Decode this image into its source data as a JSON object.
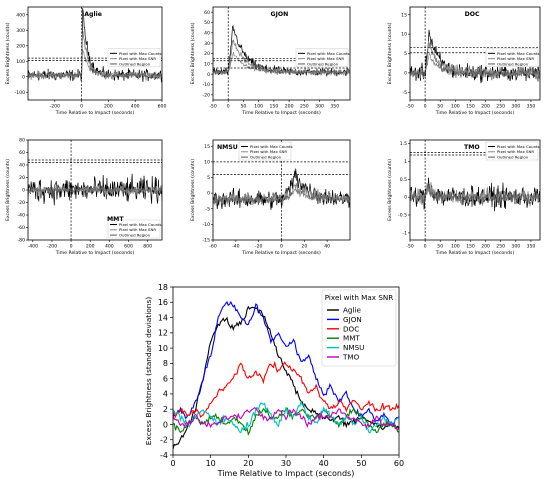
{
  "chart_data": [
    {
      "type": "line",
      "title": "Aglie",
      "xlabel": "Time Relative to Impact (seconds)",
      "ylabel": "Excess Brightness (counts)",
      "xlim": [
        -400,
        600
      ],
      "ylim": [
        -150,
        450
      ],
      "xticks": [
        -200,
        0,
        200,
        400,
        600
      ],
      "yticks": [
        -100,
        0,
        100,
        200,
        300,
        400
      ],
      "hlines": [
        120,
        105
      ],
      "vline": 0,
      "legend": [
        "Pixel with Max Counts",
        "Pixel with Max SNR",
        "Outlined Region"
      ],
      "legend_position": "right",
      "profile": {
        "peak": 420,
        "peak_t": 8,
        "decay_tau": 40,
        "base": 10,
        "noise": 55,
        "second": 0.7
      }
    },
    {
      "type": "line",
      "title": "GJON",
      "xlabel": "Time Relative to Impact (seconds)",
      "ylabel": "Excess Brightness (counts)",
      "xlim": [
        -50,
        400
      ],
      "ylim": [
        -25,
        65
      ],
      "xticks": [
        -50,
        0,
        50,
        100,
        150,
        200,
        250,
        300,
        350
      ],
      "yticks": [
        -20,
        -10,
        0,
        10,
        20,
        30,
        40,
        50,
        60
      ],
      "hlines": [
        15,
        13,
        6
      ],
      "vline": 0,
      "legend": [
        "Pixel with Max Counts",
        "Pixel with Max SNR",
        "Outlined Region"
      ],
      "legend_position": "right",
      "profile": {
        "peak": 45,
        "peak_t": 15,
        "decay_tau": 40,
        "base": 2,
        "noise": 6,
        "second": 0.7
      }
    },
    {
      "type": "line",
      "title": "DOC",
      "xlabel": "Time Relative to Impact (seconds)",
      "ylabel": "Excess Brightness (counts)",
      "xlim": [
        -50,
        380
      ],
      "ylim": [
        -7,
        17
      ],
      "xticks": [
        -50,
        0,
        50,
        100,
        150,
        200,
        250,
        300,
        350
      ],
      "yticks": [
        -5,
        0,
        5,
        10,
        15
      ],
      "hlines": [
        6.5,
        5.2
      ],
      "vline": 0,
      "legend": [
        "Pixel with Max Counts",
        "Pixel with Max SNR",
        "Outlined Region"
      ],
      "legend_position": "right",
      "profile": {
        "peak": 11,
        "peak_t": 12,
        "decay_tau": 30,
        "base": 0,
        "noise": 3.2,
        "second": 0.7
      }
    },
    {
      "type": "line",
      "title": "MMT",
      "xlabel": "Time Relative to Impact (seconds)",
      "ylabel": "Excess Brightness (counts)",
      "xlim": [
        -450,
        950
      ],
      "ylim": [
        -80,
        80
      ],
      "xticks": [
        -400,
        -200,
        0,
        200,
        400,
        600,
        800
      ],
      "yticks": [
        -80,
        -60,
        -40,
        -20,
        0,
        20,
        40,
        60,
        80
      ],
      "hlines": [
        48,
        44
      ],
      "vline": 0,
      "legend": [
        "Pixel with Max Counts",
        "Pixel with Max SNR",
        "Outlined Region"
      ],
      "legend_position": "bottom-right",
      "profile": {
        "peak": 0,
        "peak_t": 10,
        "decay_tau": 20,
        "base": 0,
        "noise": 30,
        "second": 0.3
      }
    },
    {
      "type": "line",
      "title": "NMSU",
      "xlabel": "Time Relative to Impact (seconds)",
      "ylabel": "Excess Brightness (counts)",
      "xlim": [
        -60,
        60
      ],
      "ylim": [
        -15,
        17
      ],
      "xticks": [
        -60,
        -40,
        -20,
        0,
        20,
        40
      ],
      "yticks": [
        -15,
        -10,
        -5,
        0,
        5,
        10,
        15
      ],
      "hlines": [
        10,
        6
      ],
      "vline": 0,
      "legend": [
        "Pixel with Max Counts",
        "Pixel with Max SNR",
        "Outlined Region"
      ],
      "legend_position": "top-left",
      "profile": {
        "peak": 8,
        "peak_t": 12,
        "decay_tau": 12,
        "base": -2,
        "noise": 4.5,
        "second": 0.6
      }
    },
    {
      "type": "line",
      "title": "TMO",
      "xlabel": "Time Relative to Impact (seconds)",
      "ylabel": "Excess Brightness (counts)",
      "xlim": [
        -50,
        380
      ],
      "ylim": [
        -1.2,
        1.6
      ],
      "xticks": [
        -50,
        0,
        50,
        100,
        150,
        200,
        250,
        300,
        350
      ],
      "yticks": [
        -1.0,
        -0.5,
        0.0,
        0.5,
        1.0,
        1.5
      ],
      "hlines": [
        1.25,
        1.18
      ],
      "vline": 0,
      "legend": [
        "Pixel with Max Counts",
        "Pixel with Max SNR",
        "Outlined Region"
      ],
      "legend_position": "top-right",
      "profile": {
        "peak": 0.5,
        "peak_t": 10,
        "decay_tau": 15,
        "base": 0,
        "noise": 0.45,
        "second": 0.7
      }
    },
    {
      "type": "line",
      "title": "",
      "xlabel": "Time Relative to Impact (seconds)",
      "ylabel": "Excess Brightness (standard deviations)",
      "xlim": [
        0,
        60
      ],
      "ylim": [
        -4,
        18
      ],
      "xticks": [
        0,
        10,
        20,
        30,
        40,
        50,
        60
      ],
      "yticks": [
        -4,
        -2,
        0,
        2,
        4,
        6,
        8,
        10,
        12,
        14,
        16,
        18
      ],
      "legend_title": "Pixel with Max SNR",
      "legend_position": "top-right",
      "x": [
        0,
        2,
        4,
        6,
        8,
        10,
        12,
        14,
        16,
        18,
        20,
        22,
        24,
        26,
        28,
        30,
        32,
        34,
        36,
        38,
        40,
        42,
        44,
        46,
        48,
        50,
        52,
        54,
        56,
        58,
        60
      ],
      "series": [
        {
          "name": "Aglie",
          "color": "#000000",
          "values": [
            -3,
            -2,
            0,
            2,
            6,
            11,
            13,
            14,
            12.5,
            13.5,
            15,
            15.5,
            14.5,
            12,
            9,
            7,
            5,
            3,
            2,
            1.5,
            1,
            0.5,
            1,
            0,
            0.5,
            1,
            0.5,
            0,
            -0.5,
            0,
            -0.5
          ]
        },
        {
          "name": "GJON",
          "color": "#0000ff",
          "values": [
            1,
            2,
            1,
            3,
            6,
            9,
            14,
            16,
            15.5,
            14,
            13,
            15.5,
            14,
            11,
            12,
            10,
            11,
            8,
            9,
            6,
            4,
            5,
            3,
            4,
            2,
            1,
            2,
            0.5,
            1.5,
            0,
            1
          ]
        },
        {
          "name": "DOC",
          "color": "#ff0000",
          "values": [
            1,
            2,
            1,
            2,
            1,
            3,
            4,
            5,
            6,
            8,
            6,
            7,
            6,
            8,
            7,
            8,
            7,
            6,
            4,
            5,
            3,
            2,
            3,
            2,
            3,
            2,
            3,
            2,
            2.5,
            2,
            2.5
          ]
        },
        {
          "name": "MMT",
          "color": "#008000",
          "values": [
            0,
            -1,
            0,
            1,
            0,
            1,
            1,
            0,
            1,
            0,
            -1,
            1,
            2,
            1,
            1,
            2,
            1,
            2,
            1,
            1,
            2,
            1,
            0,
            1,
            2,
            1,
            0,
            -1,
            0,
            0,
            -1
          ]
        },
        {
          "name": "NMSU",
          "color": "#00bfbf",
          "values": [
            2,
            1,
            0,
            1,
            2,
            1,
            0,
            1,
            0,
            -1,
            0,
            2,
            3,
            1,
            0,
            2,
            1,
            3,
            1,
            0,
            2,
            1,
            0,
            1,
            0,
            1,
            -1,
            0,
            1,
            0,
            1
          ]
        },
        {
          "name": "TMO",
          "color": "#bf00bf",
          "values": [
            1,
            0,
            0,
            1,
            0,
            0,
            0,
            1,
            1,
            1,
            2,
            2,
            1,
            1,
            2,
            1,
            2,
            1,
            0,
            1,
            1,
            1,
            2,
            1,
            1,
            0,
            0,
            1,
            0,
            0,
            -0.5
          ]
        }
      ]
    }
  ]
}
